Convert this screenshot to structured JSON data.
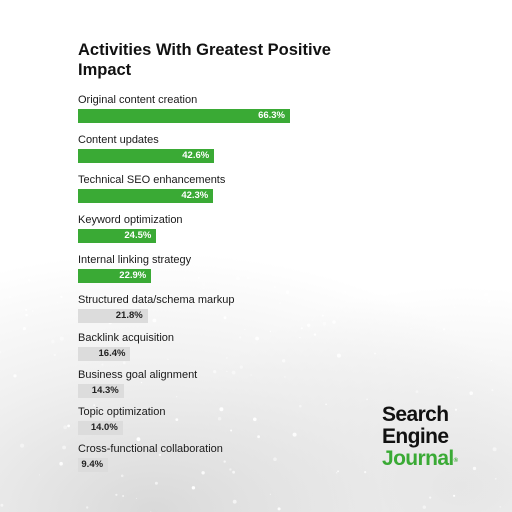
{
  "chart_data": {
    "type": "bar",
    "orientation": "horizontal",
    "title": "Activities With Greatest Positive Impact",
    "categories": [
      "Original content creation",
      "Content updates",
      "Technical SEO enhancements",
      "Keyword optimization",
      "Internal linking strategy",
      "Structured data/schema markup",
      "Backlink acquisition",
      "Business goal alignment",
      "Topic optimization",
      "Cross-functional collaboration"
    ],
    "values": [
      66.3,
      42.6,
      42.3,
      24.5,
      22.9,
      21.8,
      16.4,
      14.3,
      14.0,
      9.4
    ],
    "value_labels": [
      "66.3%",
      "42.6%",
      "42.3%",
      "24.5%",
      "22.9%",
      "21.8%",
      "16.4%",
      "14.3%",
      "14.0%",
      "9.4%"
    ],
    "highlight_count": 5,
    "xlim": [
      0,
      66.3
    ],
    "grid": false,
    "colors": {
      "highlight": "#3aaa35",
      "highlight_text": "#ffffff",
      "muted": "#dcdcdc",
      "muted_text": "#222222"
    }
  },
  "logo": {
    "line1": "Search",
    "line2": "Engine",
    "line3": "Journal",
    "mark": "®",
    "accent_color": "#3aaa35"
  }
}
